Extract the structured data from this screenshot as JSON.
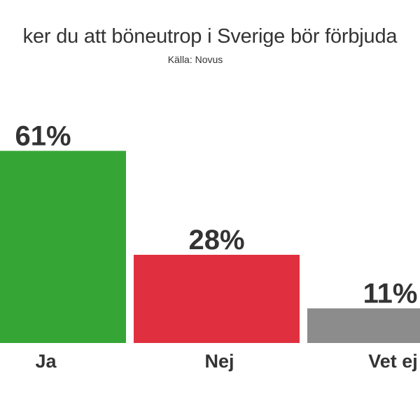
{
  "chart_data": {
    "type": "bar",
    "title": "ker du att böneutrop i Sverige bör förbjuda",
    "subtitle": "Källa: Novus",
    "categories": [
      "Ja",
      "Nej",
      "Vet ej"
    ],
    "values": [
      61,
      28,
      11
    ],
    "value_labels": [
      "61%",
      "28%",
      "11%"
    ],
    "colors": [
      "#35a635",
      "#e0303f",
      "#8c8c8c"
    ],
    "ylim": [
      0,
      100
    ],
    "xlabel": "",
    "ylabel": "",
    "grid": false
  }
}
